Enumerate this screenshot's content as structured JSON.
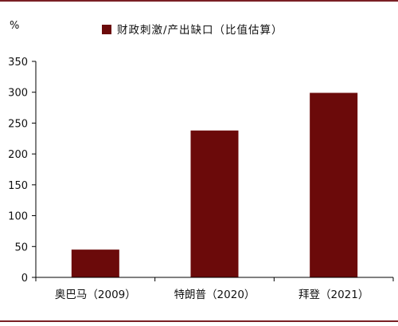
{
  "chart_data": {
    "type": "bar",
    "ylabel": "%",
    "categories": [
      "奥巴马（2009）",
      "特朗普（2020）",
      "拜登（2021）"
    ],
    "series": [
      {
        "name": "财政刺激/产出缺口（比值估算）",
        "values": [
          45,
          238,
          299
        ]
      }
    ],
    "ylim": [
      0,
      350
    ],
    "yticks": [
      0,
      50,
      100,
      150,
      200,
      250,
      300,
      350
    ],
    "grid": false,
    "legend_position": "top-center",
    "colors": {
      "bar": "#6b0a0a",
      "axis": "#000000",
      "rule": "#7a1f24"
    }
  }
}
